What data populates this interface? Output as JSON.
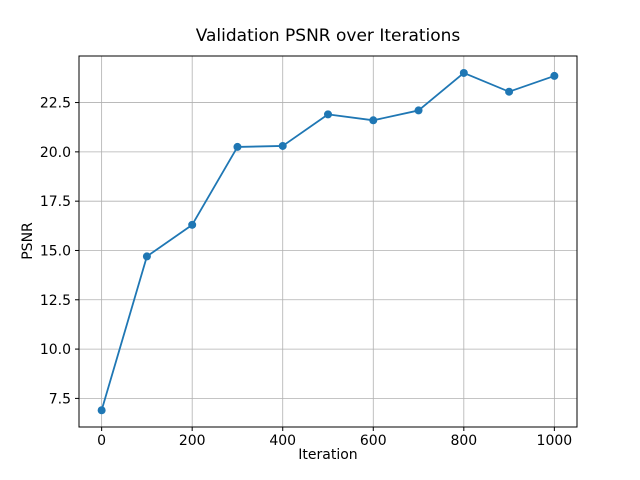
{
  "chart_data": {
    "type": "line",
    "title": "Validation PSNR over Iterations",
    "xlabel": "Iteration",
    "ylabel": "PSNR",
    "x": [
      0,
      100,
      200,
      300,
      400,
      500,
      600,
      700,
      800,
      900,
      1000
    ],
    "series": [
      {
        "name": "PSNR",
        "color": "#1f77b4",
        "marker": "o",
        "values": [
          6.9,
          14.7,
          16.3,
          20.25,
          20.3,
          21.9,
          21.6,
          22.1,
          24.0,
          23.05,
          23.85
        ]
      }
    ],
    "xlim": [
      -50,
      1050
    ],
    "ylim": [
      6.05,
      24.86
    ],
    "xticks": [
      0,
      200,
      400,
      600,
      800,
      1000
    ],
    "xtick_labels": [
      "0",
      "200",
      "400",
      "600",
      "800",
      "1000"
    ],
    "yticks": [
      7.5,
      10.0,
      12.5,
      15.0,
      17.5,
      20.0,
      22.5
    ],
    "ytick_labels": [
      "7.5",
      "10.0",
      "12.5",
      "15.0",
      "17.5",
      "20.0",
      "22.5"
    ],
    "grid": true,
    "legend": "none",
    "colors": {
      "grid": "#b0b0b0",
      "axes": "#000000",
      "text": "#000000",
      "background": "#ffffff"
    }
  }
}
